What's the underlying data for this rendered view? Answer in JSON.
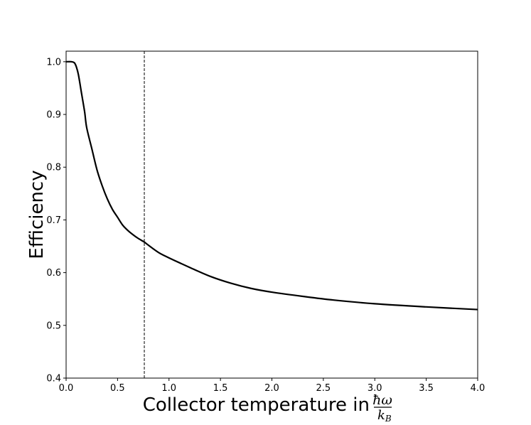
{
  "chart_data": {
    "type": "line",
    "title": "",
    "xlabel": "Collector temperature in",
    "xlabel_fraction": {
      "numerator": "ħω",
      "denominator": "k",
      "denominator_subscript": "B"
    },
    "ylabel": "Efficiency",
    "xlim": [
      0.0,
      4.0
    ],
    "ylim": [
      0.4,
      1.02
    ],
    "x_ticks": [
      "0.0",
      "0.5",
      "1.0",
      "1.5",
      "2.0",
      "2.5",
      "3.0",
      "3.5",
      "4.0"
    ],
    "y_ticks": [
      "0.4",
      "0.5",
      "0.6",
      "0.7",
      "0.8",
      "0.9",
      "1.0"
    ],
    "grid": false,
    "legend": "none",
    "series": [
      {
        "color": "#000000",
        "style": "solid",
        "x": [
          0.0,
          0.05,
          0.08,
          0.1,
          0.12,
          0.15,
          0.18,
          0.2,
          0.25,
          0.3,
          0.35,
          0.4,
          0.45,
          0.5,
          0.55,
          0.6,
          0.65,
          0.7,
          0.76,
          0.8,
          0.9,
          1.0,
          1.2,
          1.4,
          1.6,
          1.8,
          2.0,
          2.3,
          2.6,
          3.0,
          3.5,
          4.0
        ],
        "y": [
          1.0,
          1.0,
          0.998,
          0.99,
          0.975,
          0.94,
          0.905,
          0.875,
          0.835,
          0.795,
          0.765,
          0.74,
          0.72,
          0.705,
          0.69,
          0.68,
          0.672,
          0.665,
          0.658,
          0.652,
          0.638,
          0.628,
          0.61,
          0.593,
          0.58,
          0.57,
          0.563,
          0.555,
          0.548,
          0.541,
          0.535,
          0.53
        ]
      }
    ],
    "vertical_line": {
      "x": 0.76,
      "style": "dashed",
      "color": "#000000"
    }
  }
}
